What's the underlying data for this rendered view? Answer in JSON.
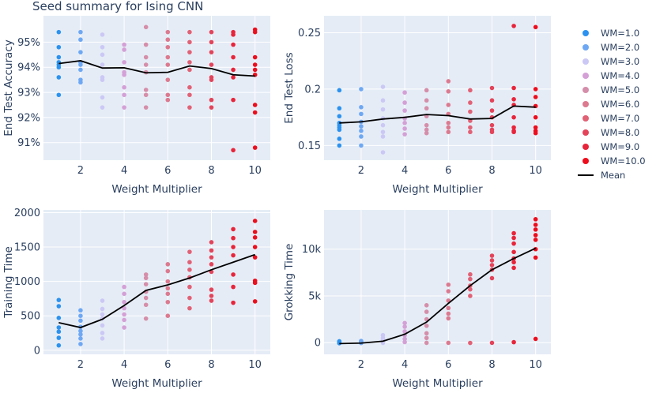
{
  "title": "Seed summary for Ising CNN",
  "legend_entries": [
    "WM=1.0",
    "WM=2.0",
    "WM=3.0",
    "WM=4.0",
    "WM=5.0",
    "WM=6.0",
    "WM=7.0",
    "WM=8.0",
    "WM=9.0",
    "WM=10.0",
    "Mean"
  ],
  "colors": {
    "plot_bg": "#e5ecf6",
    "grid": "#ffffff",
    "text": "#2a3f5f",
    "mean": "#000000",
    "wm": [
      "#2b92f0",
      "#6ea8f4",
      "#cbc8f5",
      "#d4a0d6",
      "#d58ea9",
      "#dc7a8f",
      "#e16175",
      "#e3445a",
      "#e8243a",
      "#ee0d1c"
    ]
  },
  "chart_data": [
    {
      "type": "scatter",
      "name": "end-test-accuracy",
      "xlabel": "Weight Multiplier",
      "ylabel": "End Test Accuracy",
      "xlim": [
        0.3,
        10.7
      ],
      "ylim": [
        0.903,
        0.9605
      ],
      "xticks": [
        2,
        4,
        6,
        8,
        10
      ],
      "xticklabels": [
        "2",
        "4",
        "6",
        "8",
        "10"
      ],
      "yticks": [
        0.91,
        0.92,
        0.93,
        0.94,
        0.95
      ],
      "yticklabels": [
        "91%",
        "92%",
        "93%",
        "94%",
        "95%"
      ],
      "points": [
        [
          0.954,
          0.948,
          0.944,
          0.942,
          0.941,
          0.94,
          0.936,
          0.929
        ],
        [
          0.954,
          0.951,
          0.946,
          0.942,
          0.941,
          0.939,
          0.935,
          0.934
        ],
        [
          0.953,
          0.948,
          0.945,
          0.941,
          0.936,
          0.935,
          0.928,
          0.924
        ],
        [
          0.949,
          0.947,
          0.942,
          0.938,
          0.937,
          0.932,
          0.929,
          0.924
        ],
        [
          0.956,
          0.949,
          0.944,
          0.941,
          0.938,
          0.931,
          0.929,
          0.924
        ],
        [
          0.954,
          0.951,
          0.948,
          0.944,
          0.941,
          0.935,
          0.929,
          0.927
        ],
        [
          0.954,
          0.95,
          0.946,
          0.942,
          0.939,
          0.932,
          0.929,
          0.924
        ],
        [
          0.954,
          0.95,
          0.946,
          0.941,
          0.936,
          0.935,
          0.927,
          0.924
        ],
        [
          0.954,
          0.953,
          0.949,
          0.944,
          0.939,
          0.936,
          0.927,
          0.907
        ],
        [
          0.955,
          0.954,
          0.944,
          0.941,
          0.939,
          0.937,
          0.925,
          0.922,
          0.908
        ]
      ],
      "mean": [
        0.9415,
        0.9426,
        0.9397,
        0.9398,
        0.9378,
        0.938,
        0.9405,
        0.9395,
        0.937,
        0.9365
      ]
    },
    {
      "type": "scatter",
      "name": "end-test-loss",
      "xlabel": "Weight Multiplier",
      "ylabel": "End Test Loss",
      "xlim": [
        0.3,
        10.7
      ],
      "ylim": [
        0.137,
        0.265
      ],
      "xticks": [
        2,
        4,
        6,
        8,
        10
      ],
      "xticklabels": [
        "2",
        "4",
        "6",
        "8",
        "10"
      ],
      "yticks": [
        0.15,
        0.2,
        0.25
      ],
      "yticklabels": [
        "0.15",
        "0.2",
        "0.25"
      ],
      "points": [
        [
          0.199,
          0.183,
          0.176,
          0.17,
          0.168,
          0.166,
          0.164,
          0.156,
          0.15
        ],
        [
          0.2,
          0.184,
          0.178,
          0.171,
          0.167,
          0.163,
          0.158,
          0.15
        ],
        [
          0.202,
          0.19,
          0.182,
          0.174,
          0.168,
          0.162,
          0.158,
          0.144
        ],
        [
          0.197,
          0.188,
          0.181,
          0.174,
          0.17,
          0.165,
          0.16
        ],
        [
          0.199,
          0.19,
          0.183,
          0.176,
          0.168,
          0.164,
          0.161
        ],
        [
          0.207,
          0.198,
          0.186,
          0.178,
          0.17,
          0.166,
          0.162
        ],
        [
          0.199,
          0.188,
          0.18,
          0.172,
          0.166,
          0.162
        ],
        [
          0.201,
          0.19,
          0.181,
          0.175,
          0.168,
          0.164,
          0.162
        ],
        [
          0.256,
          0.201,
          0.191,
          0.186,
          0.175,
          0.166,
          0.163,
          0.162
        ],
        [
          0.255,
          0.2,
          0.193,
          0.185,
          0.175,
          0.166,
          0.163,
          0.161
        ]
      ],
      "mean": [
        0.17,
        0.171,
        0.1735,
        0.175,
        0.1775,
        0.1765,
        0.1735,
        0.174,
        0.185,
        0.184
      ]
    },
    {
      "type": "scatter",
      "name": "training-time",
      "xlabel": "Weight Multiplier",
      "ylabel": "Training Time",
      "xlim": [
        0.3,
        10.7
      ],
      "ylim": [
        -60,
        2040
      ],
      "xticks": [
        2,
        4,
        6,
        8,
        10
      ],
      "xticklabels": [
        "2",
        "4",
        "6",
        "8",
        "10"
      ],
      "yticks": [
        0,
        500,
        1000,
        1500,
        2000
      ],
      "yticklabels": [
        "0",
        "500",
        "1000",
        "1500",
        "2000"
      ],
      "points": [
        [
          730,
          640,
          470,
          330,
          270,
          180,
          70
        ],
        [
          580,
          500,
          430,
          340,
          280,
          230,
          170,
          90
        ],
        [
          720,
          600,
          520,
          460,
          360,
          250,
          170
        ],
        [
          920,
          820,
          700,
          610,
          520,
          440,
          330
        ],
        [
          1100,
          1050,
          960,
          850,
          760,
          660,
          460
        ],
        [
          1250,
          1150,
          1000,
          900,
          820,
          700,
          500
        ],
        [
          1430,
          1280,
          1170,
          1060,
          920,
          760,
          610
        ],
        [
          1570,
          1450,
          1350,
          1250,
          1140,
          880,
          790,
          720
        ],
        [
          1760,
          1630,
          1500,
          1380,
          1100,
          920,
          690
        ],
        [
          1880,
          1720,
          1640,
          1500,
          1350,
          1010,
          980,
          710
        ]
      ],
      "mean": [
        400,
        330,
        450,
        650,
        870,
        950,
        1050,
        1170,
        1280,
        1390
      ]
    },
    {
      "type": "scatter",
      "name": "grokking-time",
      "xlabel": "Weight Multiplier",
      "ylabel": "Grokking Time",
      "xlim": [
        0.3,
        10.7
      ],
      "ylim": [
        -1250,
        14200
      ],
      "xticks": [
        2,
        4,
        6,
        8,
        10
      ],
      "xticklabels": [
        "2",
        "4",
        "6",
        "8",
        "10"
      ],
      "yticks": [
        0,
        5000,
        10000
      ],
      "yticklabels": [
        "0",
        "5k",
        "10k"
      ],
      "points": [
        [
          150,
          80,
          30,
          -20,
          -60
        ],
        [
          180,
          120,
          60,
          10,
          -40
        ],
        [
          800,
          500,
          300,
          100,
          -30
        ],
        [
          2100,
          1700,
          1200,
          800,
          400,
          60
        ],
        [
          4000,
          3300,
          2500,
          1800,
          1000,
          500,
          -20
        ],
        [
          6200,
          5500,
          4500,
          3700,
          3100,
          2600,
          -20
        ],
        [
          7300,
          6800,
          6100,
          5700,
          5000,
          -30
        ],
        [
          9300,
          8800,
          8300,
          7800,
          6900,
          -20
        ],
        [
          11700,
          11200,
          10600,
          9700,
          9000,
          8600,
          8000,
          50
        ],
        [
          13200,
          12600,
          12100,
          11500,
          11000,
          10000,
          9100,
          400
        ]
      ],
      "mean": [
        -100,
        -50,
        150,
        900,
        2200,
        4200,
        6100,
        7800,
        9000,
        10100
      ]
    }
  ]
}
